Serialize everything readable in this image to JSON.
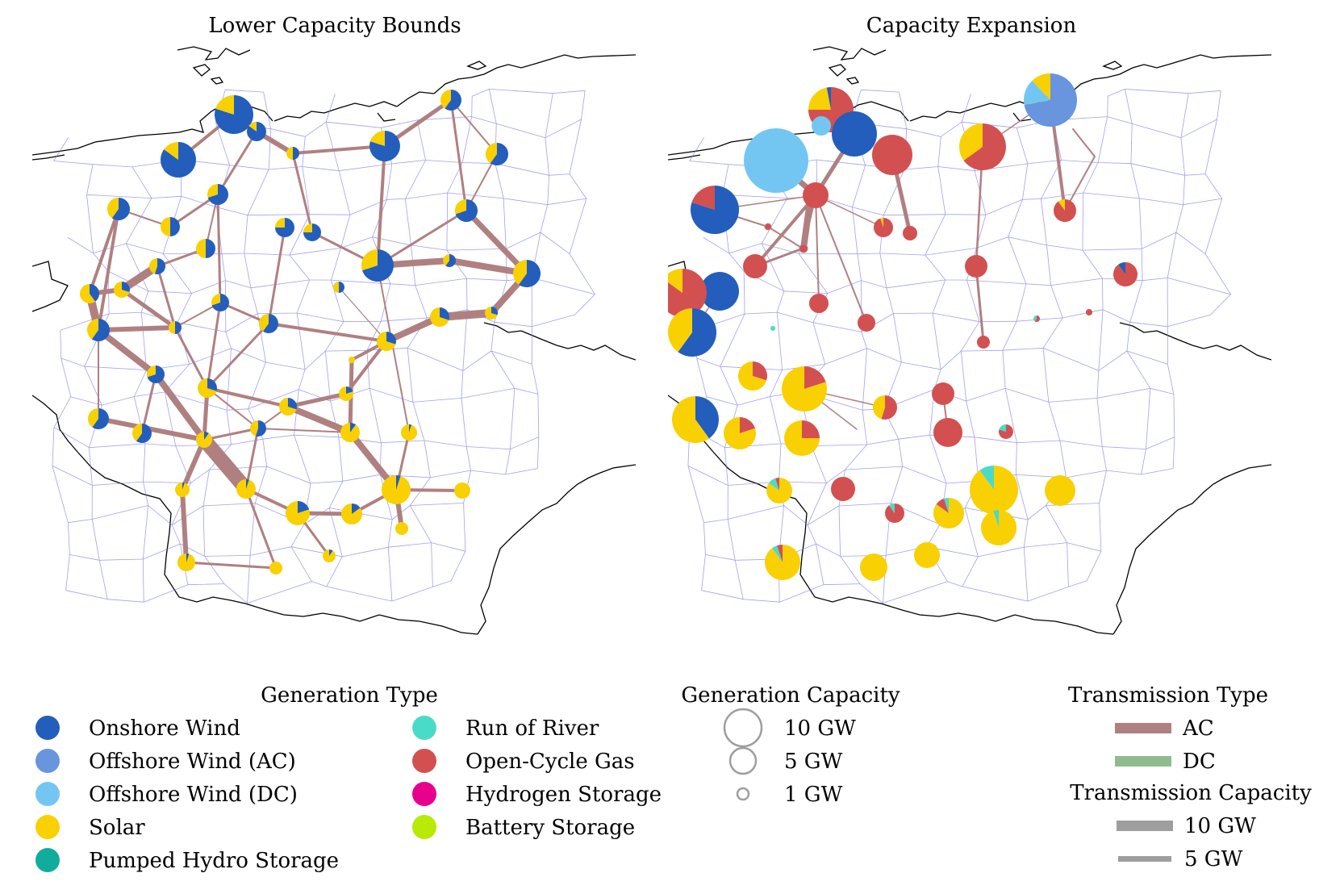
{
  "titles": {
    "left": "Lower Capacity Bounds",
    "right": "Capacity Expansion"
  },
  "colors": {
    "onshore_wind": "#235ebc",
    "offshore_wind_ac": "#6895dd",
    "offshore_wind_dc": "#74c6f2",
    "solar": "#f9d002",
    "pumped_hydro": "#10ad9c",
    "run_of_river": "#4adbc8",
    "ocgt": "#d35050",
    "hydrogen": "#e7008e",
    "battery": "#b8ea04",
    "ac_line": "#b08080",
    "dc_line": "#8fbc8f",
    "capacity_line": "#9e9e9e",
    "boundary": "#7777ee",
    "coast": "#000000"
  },
  "legend": {
    "generation_type": {
      "heading": "Generation Type",
      "items": [
        {
          "label": "Onshore Wind",
          "color": "#235ebc"
        },
        {
          "label": "Offshore Wind (AC)",
          "color": "#6895dd"
        },
        {
          "label": "Offshore Wind (DC)",
          "color": "#74c6f2"
        },
        {
          "label": "Solar",
          "color": "#f9d002"
        },
        {
          "label": "Pumped Hydro Storage",
          "color": "#10ad9c"
        },
        {
          "label": "Run of River",
          "color": "#4adbc8"
        },
        {
          "label": "Open-Cycle Gas",
          "color": "#d35050"
        },
        {
          "label": "Hydrogen Storage",
          "color": "#e7008e"
        },
        {
          "label": "Battery Storage",
          "color": "#b8ea04"
        }
      ]
    },
    "generation_capacity": {
      "heading": "Generation Capacity",
      "items": [
        {
          "label": "10 GW",
          "gw": 10
        },
        {
          "label": "5 GW",
          "gw": 5
        },
        {
          "label": "1 GW",
          "gw": 1
        }
      ]
    },
    "transmission_type": {
      "heading": "Transmission Type",
      "items": [
        {
          "label": "AC",
          "color": "#b08080"
        },
        {
          "label": "DC",
          "color": "#8fbc8f"
        }
      ]
    },
    "transmission_capacity": {
      "heading": "Transmission Capacity",
      "items": [
        {
          "label": "10 GW",
          "gw": 10
        },
        {
          "label": "5 GW",
          "gw": 5
        }
      ]
    }
  }
}
